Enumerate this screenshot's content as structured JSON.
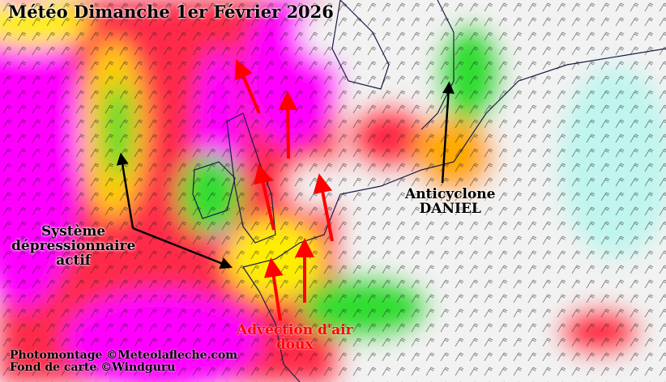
{
  "title": "Météo Dimanche 1er Février 2026",
  "annotations": {
    "system": [
      "Système",
      "dépressionnaire",
      "actif"
    ],
    "anticyclone": [
      "Anticyclone",
      "DANIEL"
    ],
    "advection": [
      "Advection d'air",
      "doux"
    ]
  },
  "credits": [
    "Photomontage ©Meteolafleche.com",
    "Fond de carte ©Windguru"
  ],
  "colors": {
    "strong_wind": "#ff00ff",
    "high": "#ff2a4a",
    "moderate": "#ffee00",
    "low": "#33dd33",
    "calm": "#f2f2f2",
    "arrow_warm": "#ff0000",
    "arrow_pointer": "#000000"
  }
}
